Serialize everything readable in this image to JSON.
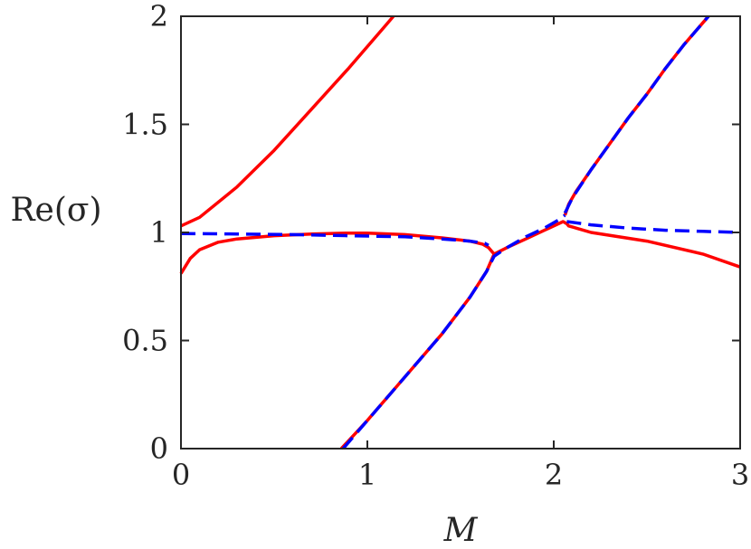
{
  "chart_data": {
    "type": "line",
    "xlabel": "M",
    "ylabel": "Re(σ)",
    "xlim": [
      0,
      3
    ],
    "ylim": [
      0,
      2
    ],
    "xticks": [
      "0",
      "1",
      "2",
      "3"
    ],
    "yticks": [
      "0",
      "0.5",
      "1",
      "1.5",
      "2"
    ],
    "xtick_values": [
      0,
      1,
      2,
      3
    ],
    "ytick_values": [
      0,
      0.5,
      1,
      1.5,
      2
    ],
    "grid": false,
    "legend": "none",
    "series": [
      {
        "style": "solid",
        "color": "#ff0000",
        "points": [
          [
            0,
            1.03
          ],
          [
            0.1,
            1.07
          ],
          [
            0.3,
            1.21
          ],
          [
            0.5,
            1.38
          ],
          [
            0.7,
            1.57
          ],
          [
            0.9,
            1.76
          ],
          [
            1.0,
            1.86
          ],
          [
            1.1,
            1.96
          ],
          [
            1.14,
            2.0
          ]
        ]
      },
      {
        "style": "solid",
        "color": "#ff0000",
        "points": [
          [
            0,
            0.81
          ],
          [
            0.05,
            0.88
          ],
          [
            0.1,
            0.92
          ],
          [
            0.2,
            0.955
          ],
          [
            0.3,
            0.97
          ],
          [
            0.5,
            0.985
          ],
          [
            0.7,
            0.993
          ],
          [
            0.9,
            0.997
          ],
          [
            1.0,
            0.997
          ],
          [
            1.2,
            0.99
          ],
          [
            1.4,
            0.975
          ],
          [
            1.55,
            0.96
          ],
          [
            1.62,
            0.945
          ],
          [
            1.65,
            0.93
          ],
          [
            1.67,
            0.91
          ],
          [
            1.68,
            0.9
          ],
          [
            1.75,
            0.93
          ],
          [
            1.85,
            0.97
          ],
          [
            1.95,
            1.01
          ],
          [
            2.05,
            1.05
          ],
          [
            2.07,
            1.04
          ],
          [
            2.08,
            1.03
          ],
          [
            2.2,
            1.0
          ],
          [
            2.5,
            0.96
          ],
          [
            2.8,
            0.9
          ],
          [
            3.0,
            0.84
          ]
        ]
      },
      {
        "style": "solid",
        "color": "#ff0000",
        "points": [
          [
            0.86,
            0.0
          ],
          [
            1.0,
            0.13
          ],
          [
            1.2,
            0.33
          ],
          [
            1.4,
            0.53
          ],
          [
            1.55,
            0.7
          ],
          [
            1.64,
            0.82
          ],
          [
            1.67,
            0.88
          ],
          [
            1.68,
            0.9
          ]
        ]
      },
      {
        "style": "solid",
        "color": "#ff0000",
        "points": [
          [
            2.06,
            1.08
          ],
          [
            2.08,
            1.13
          ],
          [
            2.12,
            1.19
          ],
          [
            2.2,
            1.29
          ],
          [
            2.3,
            1.41
          ],
          [
            2.4,
            1.53
          ],
          [
            2.5,
            1.64
          ],
          [
            2.6,
            1.76
          ],
          [
            2.7,
            1.87
          ],
          [
            2.8,
            1.97
          ],
          [
            2.83,
            2.0
          ]
        ]
      },
      {
        "style": "dashed",
        "color": "#0000ff",
        "points": [
          [
            0,
            0.995
          ],
          [
            0.3,
            0.993
          ],
          [
            0.6,
            0.99
          ],
          [
            0.9,
            0.985
          ],
          [
            1.2,
            0.98
          ],
          [
            1.4,
            0.97
          ],
          [
            1.55,
            0.96
          ],
          [
            1.63,
            0.95
          ],
          [
            1.65,
            0.94
          ]
        ]
      },
      {
        "style": "dashed",
        "color": "#0000ff",
        "points": [
          [
            0.87,
            0.0
          ],
          [
            1.0,
            0.13
          ],
          [
            1.2,
            0.33
          ],
          [
            1.4,
            0.53
          ],
          [
            1.55,
            0.7
          ],
          [
            1.64,
            0.82
          ],
          [
            1.68,
            0.89
          ],
          [
            1.75,
            0.93
          ],
          [
            1.85,
            0.98
          ],
          [
            1.95,
            1.02
          ],
          [
            2.03,
            1.06
          ],
          [
            2.06,
            1.08
          ]
        ]
      },
      {
        "style": "dashed",
        "color": "#0000ff",
        "points": [
          [
            2.06,
            1.09
          ],
          [
            2.1,
            1.16
          ],
          [
            2.2,
            1.29
          ],
          [
            2.3,
            1.41
          ],
          [
            2.4,
            1.53
          ],
          [
            2.5,
            1.64
          ],
          [
            2.6,
            1.76
          ],
          [
            2.7,
            1.87
          ],
          [
            2.8,
            1.97
          ],
          [
            2.83,
            2.0
          ]
        ]
      },
      {
        "style": "dashed",
        "color": "#0000ff",
        "points": [
          [
            2.07,
            1.05
          ],
          [
            2.2,
            1.035
          ],
          [
            2.4,
            1.02
          ],
          [
            2.6,
            1.01
          ],
          [
            2.8,
            1.005
          ],
          [
            3.0,
            1.0
          ]
        ]
      }
    ]
  }
}
